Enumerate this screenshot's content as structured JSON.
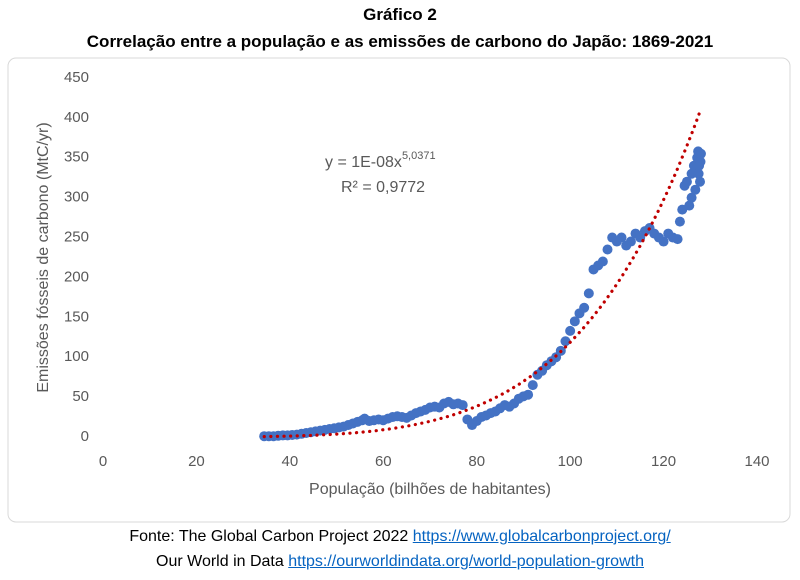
{
  "header": {
    "title": "Gráfico 2",
    "subtitle": "Correlação entre a população e as emissões de carbono do Japão: 1869-2021"
  },
  "chart_data": {
    "type": "scatter",
    "x_label": "População (bilhões de habitantes)",
    "y_label": "Emissões fósseis de carbono (MtC/yr)",
    "color": "#4472c4",
    "xlim": [
      0,
      140
    ],
    "xticks": [
      0,
      20,
      40,
      60,
      80,
      100,
      120,
      140
    ],
    "ylim": [
      0,
      450
    ],
    "yticks": [
      0,
      50,
      100,
      150,
      200,
      250,
      300,
      350,
      400,
      450
    ],
    "grid": false,
    "x": [
      34.5,
      35.5,
      36.5,
      37.5,
      38.5,
      39.5,
      40.5,
      41.5,
      42.5,
      43.5,
      44.5,
      45.5,
      46.5,
      47.5,
      48.5,
      49.5,
      50.5,
      51.5,
      52.5,
      53.5,
      54.5,
      55.5,
      56,
      57,
      58,
      59,
      60,
      61,
      62,
      63,
      64,
      65,
      66,
      67,
      68,
      69,
      70,
      71,
      72,
      73,
      74,
      75,
      76,
      77,
      78,
      79,
      80,
      81,
      82,
      83,
      84,
      85,
      86,
      87,
      88,
      89,
      90,
      91,
      92,
      93,
      94,
      95,
      96,
      97,
      98,
      99,
      100,
      101,
      102,
      103,
      104,
      105,
      106,
      107,
      108,
      109,
      110,
      111,
      112,
      113,
      114,
      115,
      116,
      117,
      118,
      119,
      120,
      121,
      122,
      123,
      123.5,
      124,
      124.5,
      125,
      125.5,
      126,
      126,
      126.5,
      126.8,
      127,
      127.2,
      127.4,
      127.6,
      127.8,
      127.9,
      128,
      127.5
    ],
    "values": [
      1,
      1,
      1,
      1.5,
      2,
      2,
      2.5,
      3,
      4,
      5,
      6,
      7,
      8,
      9,
      10,
      11,
      12,
      13,
      15,
      17,
      19,
      21,
      23,
      20,
      21,
      22,
      21,
      23,
      25,
      26,
      25,
      24,
      27,
      30,
      32,
      34,
      37,
      38,
      37,
      42,
      44,
      41,
      42,
      40,
      22,
      15,
      20,
      25,
      27,
      30,
      32,
      36,
      40,
      38,
      42,
      48,
      51,
      53,
      65,
      78,
      83,
      90,
      95,
      100,
      108,
      120,
      133,
      145,
      155,
      162,
      180,
      210,
      215,
      220,
      235,
      250,
      245,
      250,
      240,
      245,
      255,
      250,
      258,
      262,
      255,
      250,
      245,
      255,
      250,
      248,
      270,
      285,
      315,
      320,
      290,
      300,
      330,
      340,
      310,
      335,
      350,
      358,
      340,
      320,
      345,
      355,
      330
    ],
    "trendline": {
      "color": "#c00000",
      "coefficient": 1e-08,
      "exponent": 5.0371,
      "x_range": [
        34.5,
        128
      ],
      "equation_label": "y = 1E-08x",
      "exponent_label": "5,0371",
      "r2_label": "R² = 0,9772"
    }
  },
  "footer": {
    "source_text": "Fonte: The Global Carbon Project 2022",
    "source_link": "https://www.globalcarbonproject.org/",
    "source2_text": "Our World in Data",
    "source2_link": "https://ourworldindata.org/world-population-growth"
  }
}
